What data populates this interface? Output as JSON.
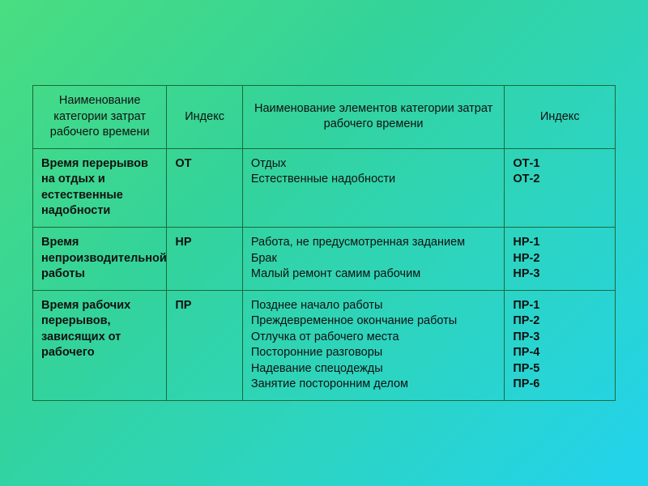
{
  "table": {
    "headers": {
      "col1": "Наименование категории затрат рабочего времени",
      "col2": "Индекс",
      "col3": "Наименование элементов категории затрат рабочего времени",
      "col4": "Индекс"
    },
    "rows": [
      {
        "category": "Время перерывов на отдых и естественные надобности",
        "index": "ОТ",
        "elements": "Отдых\nЕстественные надобности",
        "element_indexes": "ОТ-1\nОТ-2"
      },
      {
        "category": "Время непроизводительной работы",
        "index": "НР",
        "elements": "Работа, не предусмотренная заданием\nБрак\nМалый ремонт самим рабочим",
        "element_indexes": "НР-1\nНР-2\nНР-3"
      },
      {
        "category": "Время рабочих перерывов, зависящих от рабочего",
        "index": "ПР",
        "elements": "Позднее начало работы\nПреждевременное окончание работы\nОтлучка от рабочего места\nПосторонние разговоры\nНадевание спецодежды\nЗанятие посторонним делом",
        "element_indexes": "ПР-1\nПР-2\nПР-3\nПР-4\nПР-5\nПР-6"
      }
    ],
    "style": {
      "border_color": "#1a6b3a",
      "font_size_pt": 11,
      "background_gradient": [
        "#4ade80",
        "#34d399",
        "#2dd4bf",
        "#22d3ee"
      ],
      "text_color": "#111111",
      "bold_columns": [
        0,
        1,
        3
      ]
    }
  }
}
